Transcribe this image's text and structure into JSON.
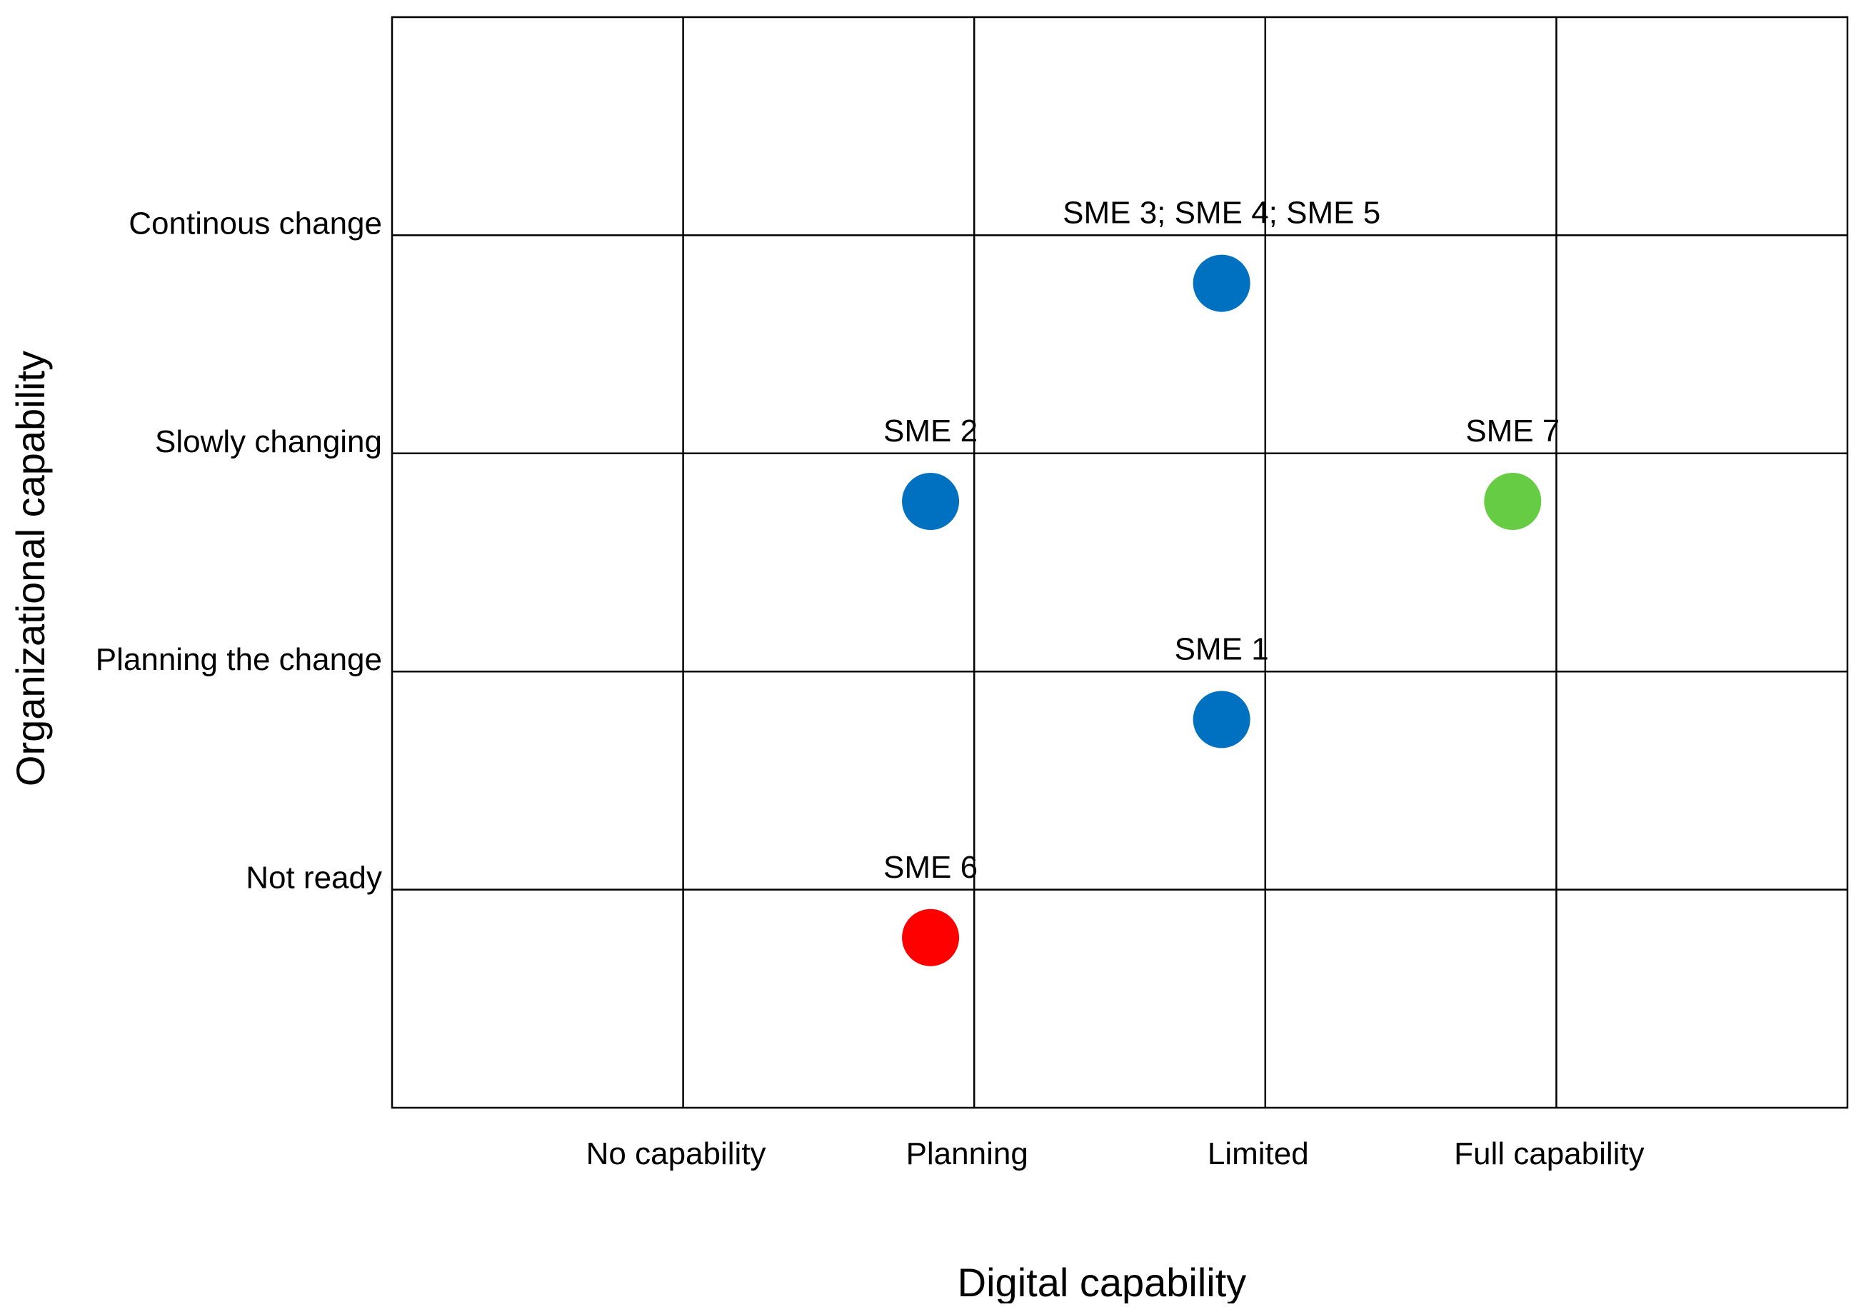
{
  "chart_data": {
    "type": "scatter",
    "title": "",
    "xlabel": "Digital capability",
    "ylabel": "Organizational capability",
    "x_categories": [
      "No capability",
      "Planning",
      "Limited",
      "Full capability"
    ],
    "y_categories": [
      "Not ready",
      "Planning the change",
      "Slowly changing",
      "Continous change"
    ],
    "xlim": [
      0,
      5
    ],
    "ylim": [
      0,
      5
    ],
    "grid": true,
    "legend": "none",
    "points": [
      {
        "name": "SME 3; SME 4; SME 5",
        "label": "SME 3; SME 4; SME 5",
        "x": 2.85,
        "y": 3.78,
        "color": "#0070C0"
      },
      {
        "name": "SME 2",
        "label": "SME 2",
        "x": 1.85,
        "y": 2.78,
        "color": "#0070C0"
      },
      {
        "name": "SME 7",
        "label": "SME 7",
        "x": 3.85,
        "y": 2.78,
        "color": "#66CC44"
      },
      {
        "name": "SME 1",
        "label": "SME 1",
        "x": 2.85,
        "y": 1.78,
        "color": "#0070C0"
      },
      {
        "name": "SME 6",
        "label": "SME 6",
        "x": 1.85,
        "y": 0.78,
        "color": "#FF0000"
      }
    ]
  }
}
